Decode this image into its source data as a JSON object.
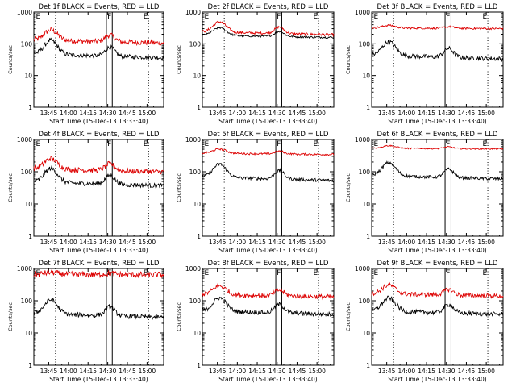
{
  "chart_data": {
    "type": "line",
    "layout": "3x3 grid",
    "xlabel": "Start Time (15-Dec-13 13:33:40)",
    "ylabel": "Counts/sec",
    "y_scale": "log",
    "ylim": [
      1,
      1000
    ],
    "y_tick_labels": [
      "1",
      "10",
      "100",
      "1000"
    ],
    "xlim_minutes": [
      0,
      99
    ],
    "x_tick_labels": [
      "13:45",
      "14:00",
      "14:15",
      "14:30",
      "14:45",
      "15:00"
    ],
    "x_tick_minutes": [
      11.33,
      26.33,
      41.33,
      56.33,
      71.33,
      86.33
    ],
    "dotted_marker_minutes": [
      16.5,
      87.5
    ],
    "solid_marker_minutes": [
      55.3,
      59.8
    ],
    "flag_labels": [
      {
        "text": "E",
        "minute": 1.5
      },
      {
        "text": "F",
        "minute": 56.0
      },
      {
        "text": "E",
        "minute": 83.5
      }
    ],
    "series_colors": {
      "events": "#000000",
      "lld": "#dd0000"
    },
    "legend_text": "BLACK = Events, RED = LLD",
    "panels": [
      {
        "title": "Det 1f BLACK = Events, RED = LLD",
        "events": {
          "name": "Events",
          "color": "#000000",
          "level": 60,
          "bump": 0.8,
          "noise": 0.07
        },
        "lld": {
          "name": "LLD",
          "color": "#dd0000",
          "level": 155,
          "bump": 0.6,
          "noise": 0.08
        }
      },
      {
        "title": "Det 2f BLACK = Events, RED = LLD",
        "events": {
          "name": "Events",
          "color": "#000000",
          "level": 210,
          "bump": 0.45,
          "noise": 0.03
        },
        "lld": {
          "name": "LLD",
          "color": "#dd0000",
          "level": 280,
          "bump": 0.6,
          "noise": 0.04
        }
      },
      {
        "title": "Det 3f BLACK = Events, RED = LLD",
        "events": {
          "name": "Events",
          "color": "#000000",
          "level": 55,
          "bump": 0.8,
          "noise": 0.07
        },
        "lld": {
          "name": "LLD",
          "color": "#dd0000",
          "level": 330,
          "bump": 0.15,
          "noise": 0.03
        }
      },
      {
        "title": "Det 4f BLACK = Events, RED = LLD",
        "events": {
          "name": "Events",
          "color": "#000000",
          "level": 60,
          "bump": 0.8,
          "noise": 0.07
        },
        "lld": {
          "name": "LLD",
          "color": "#dd0000",
          "level": 145,
          "bump": 0.6,
          "noise": 0.08
        }
      },
      {
        "title": "Det 5f BLACK = Events, RED = LLD",
        "events": {
          "name": "Events",
          "color": "#000000",
          "level": 85,
          "bump": 0.75,
          "noise": 0.05
        },
        "lld": {
          "name": "LLD",
          "color": "#dd0000",
          "level": 400,
          "bump": 0.25,
          "noise": 0.03
        }
      },
      {
        "title": "Det 6f BLACK = Events, RED = LLD",
        "events": {
          "name": "Events",
          "color": "#000000",
          "level": 95,
          "bump": 0.75,
          "noise": 0.05
        },
        "lld": {
          "name": "LLD",
          "color": "#dd0000",
          "level": 560,
          "bump": 0.15,
          "noise": 0.02
        }
      },
      {
        "title": "Det 7f BLACK = Events, RED = LLD",
        "events": {
          "name": "Events",
          "color": "#000000",
          "level": 50,
          "bump": 0.8,
          "noise": 0.07
        },
        "lld": {
          "name": "LLD",
          "color": "#dd0000",
          "level": 680,
          "bump": 0.1,
          "noise": 0.09
        }
      },
      {
        "title": "Det 8f BLACK = Events, RED = LLD",
        "events": {
          "name": "Events",
          "color": "#000000",
          "level": 60,
          "bump": 0.75,
          "noise": 0.07
        },
        "lld": {
          "name": "LLD",
          "color": "#dd0000",
          "level": 180,
          "bump": 0.5,
          "noise": 0.07
        }
      },
      {
        "title": "Det 9f BLACK = Events, RED = LLD",
        "events": {
          "name": "Events",
          "color": "#000000",
          "level": 60,
          "bump": 0.75,
          "noise": 0.07
        },
        "lld": {
          "name": "LLD",
          "color": "#dd0000",
          "level": 190,
          "bump": 0.5,
          "noise": 0.07
        }
      }
    ]
  }
}
